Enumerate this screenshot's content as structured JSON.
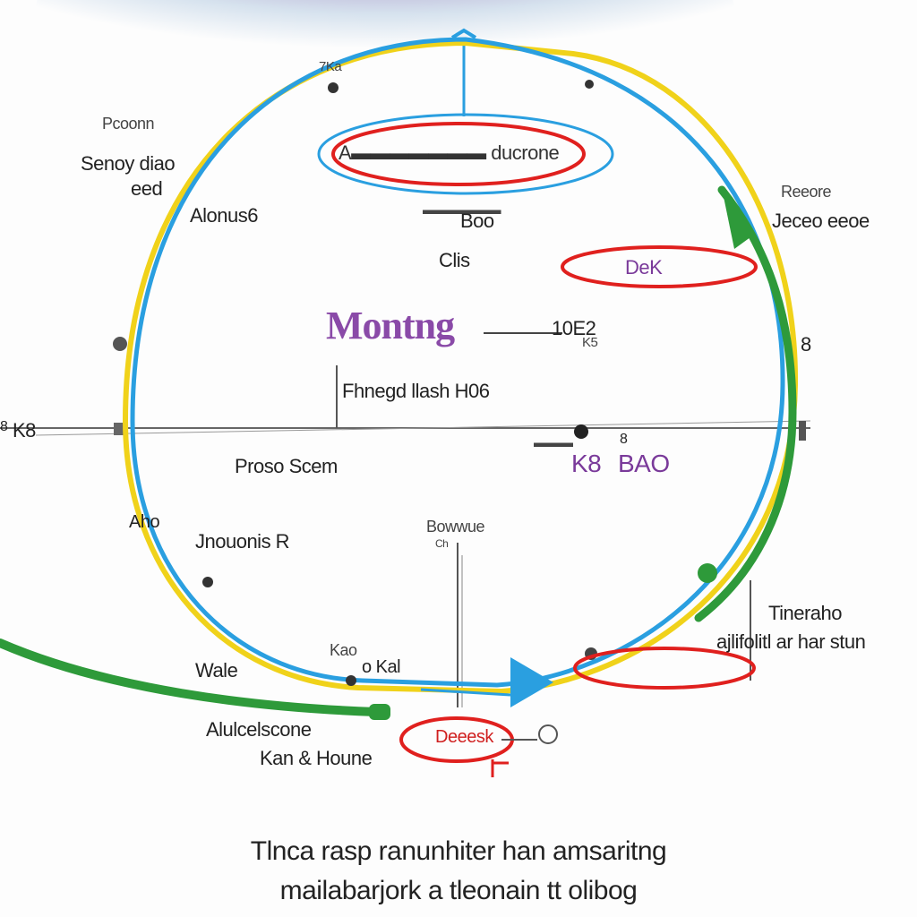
{
  "diagram": {
    "top_oval_label": "A▬▬▬▬▬▬▬ ducrone",
    "sub_label_1": "▬▬▬▬▬▬",
    "sub_label_2": "Boo",
    "center_small": "Clis",
    "center_title": "Montng",
    "center_side_number": "10E2",
    "center_side_sub": "K5",
    "axis_caption": "Fhnegd llash H06",
    "axis_left_label": "K8",
    "axis_left_mark": "8",
    "proc_label": "Proso Scem",
    "right_axis_small": "▬▬▬",
    "right_axis_label_a": "K8",
    "right_axis_label_b": "BAO",
    "right_point_label": "8",
    "top_left_1": "Pcoonn",
    "top_left_2a": "Senoy diao",
    "top_left_2b": "eed",
    "left_3": "Alonus6",
    "top_right_1": "Reeore",
    "top_right_2": "Jeceo eeoe",
    "red_oval_right": "DeK",
    "left_mid_a": "Aho",
    "left_mid_b": "Jnouonis R",
    "mid_label": "Bowwue",
    "mid_label_small": "Ch",
    "right_low_1": "Tineraho",
    "right_low_2": "ajlifolitl ar har stun",
    "left_low_1": "Wale",
    "left_low_2": "Kao",
    "left_low_3": "o Kal",
    "bottom_left_1": "Alulcelscone",
    "bottom_left_2": "Kan & Houne",
    "bottom_red_label": "Deeesk",
    "top_tick_left": "7Ka",
    "caption_line1": "Tlnca rasp ranunhiter han amsaritng",
    "caption_line2": "mailabarjork a tleonain tt olibog"
  },
  "colors": {
    "blue": "#2a9fe0",
    "yellow": "#f0d21a",
    "green": "#2e9a3a",
    "red": "#e0201e",
    "purple": "#8a4aa8",
    "axis": "#555555"
  }
}
